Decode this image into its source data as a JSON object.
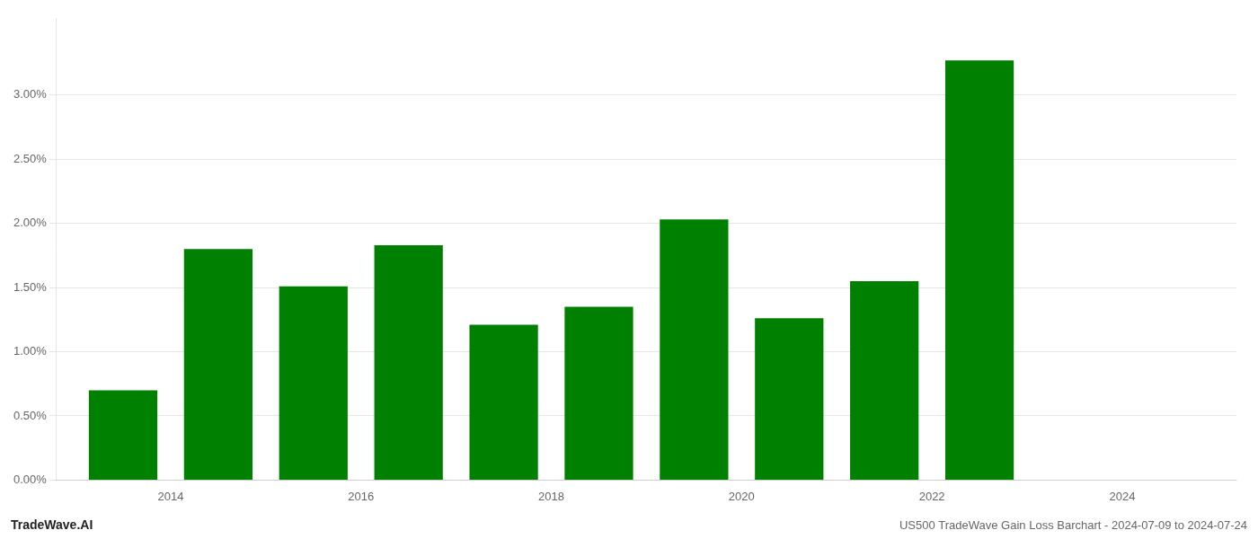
{
  "chart_data": {
    "type": "bar",
    "x": [
      2013,
      2014,
      2015,
      2016,
      2017,
      2018,
      2019,
      2020,
      2021,
      2022
    ],
    "values": [
      0.007,
      0.018,
      0.0151,
      0.0183,
      0.0121,
      0.0135,
      0.0203,
      0.0126,
      0.0155,
      0.0327
    ],
    "color": "#008000",
    "xlim": [
      2012.3,
      2024.7
    ],
    "xticks": [
      {
        "value": 2013.5,
        "label": "2014"
      },
      {
        "value": 2015.5,
        "label": "2016"
      },
      {
        "value": 2017.5,
        "label": "2018"
      },
      {
        "value": 2019.5,
        "label": "2020"
      },
      {
        "value": 2021.5,
        "label": "2022"
      },
      {
        "value": 2023.5,
        "label": "2024"
      }
    ],
    "ylim": [
      0,
      0.036
    ],
    "yticks": [
      {
        "value": 0.0,
        "label": "0.00%"
      },
      {
        "value": 0.005,
        "label": "0.50%"
      },
      {
        "value": 0.01,
        "label": "1.00%"
      },
      {
        "value": 0.015,
        "label": "1.50%"
      },
      {
        "value": 0.02,
        "label": "2.00%"
      },
      {
        "value": 0.025,
        "label": "2.50%"
      },
      {
        "value": 0.03,
        "label": "3.00%"
      }
    ],
    "grid": true,
    "annotations": [
      "TradeWave.AI",
      "US500 TradeWave Gain Loss Barchart - 2024-07-09 to 2024-07-24"
    ]
  }
}
